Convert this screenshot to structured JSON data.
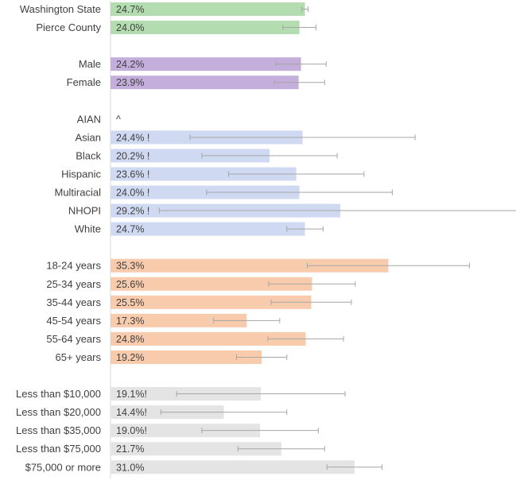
{
  "chart_data": {
    "type": "bar",
    "orientation": "horizontal",
    "colors": {
      "overall": "#b3dcb0",
      "sex": "#c4aedb",
      "race": "#cfd9f2",
      "age": "#f8cbad",
      "income": "#e4e4e4",
      "error_bar": "#a6a6a6"
    },
    "rows": [
      {
        "label": "Washington State",
        "value": 24.7,
        "display": "24.7%",
        "err": [
          24.3,
          25.1
        ],
        "group": "overall"
      },
      {
        "label": "Pierce County",
        "value": 24.0,
        "display": "24.0%",
        "err": [
          21.9,
          26.1
        ],
        "group": "overall"
      },
      {
        "spacer": true
      },
      {
        "label": "Male",
        "value": 24.2,
        "display": "24.2%",
        "err": [
          21.0,
          27.4
        ],
        "group": "sex"
      },
      {
        "label": "Female",
        "value": 23.9,
        "display": "23.9%",
        "err": [
          20.8,
          27.2
        ],
        "group": "sex"
      },
      {
        "spacer": true
      },
      {
        "label": "AIAN",
        "value": null,
        "display": "^",
        "err": null,
        "group": "race"
      },
      {
        "label": "Asian",
        "value": 24.4,
        "display": "24.4% !",
        "err": [
          10.1,
          38.7
        ],
        "group": "race"
      },
      {
        "label": "Black",
        "value": 20.2,
        "display": "20.2% !",
        "err": [
          11.6,
          28.8
        ],
        "group": "race"
      },
      {
        "label": "Hispanic",
        "value": 23.6,
        "display": "23.6% !",
        "err": [
          15.0,
          32.2
        ],
        "group": "race"
      },
      {
        "label": "Multiracial",
        "value": 24.0,
        "display": "24.0% !",
        "err": [
          12.2,
          35.8
        ],
        "group": "race"
      },
      {
        "label": "NHOPI",
        "value": 29.2,
        "display": "29.2% !",
        "err": [
          6.2,
          52.2
        ],
        "group": "race"
      },
      {
        "label": "White",
        "value": 24.7,
        "display": "24.7%",
        "err": [
          22.4,
          27.0
        ],
        "group": "race"
      },
      {
        "spacer": true
      },
      {
        "label": "18-24 years",
        "value": 35.3,
        "display": "35.3%",
        "err": [
          25.0,
          45.6
        ],
        "group": "age"
      },
      {
        "label": "25-34 years",
        "value": 25.6,
        "display": "25.6%",
        "err": [
          20.1,
          31.1
        ],
        "group": "age"
      },
      {
        "label": "35-44 years",
        "value": 25.5,
        "display": "25.5%",
        "err": [
          20.4,
          30.6
        ],
        "group": "age"
      },
      {
        "label": "45-54 years",
        "value": 17.3,
        "display": "17.3%",
        "err": [
          13.1,
          21.5
        ],
        "group": "age"
      },
      {
        "label": "55-64 years",
        "value": 24.8,
        "display": "24.8%",
        "err": [
          20.0,
          29.6
        ],
        "group": "age"
      },
      {
        "label": "65+ years",
        "value": 19.2,
        "display": "19.2%",
        "err": [
          16.0,
          22.4
        ],
        "group": "age"
      },
      {
        "spacer": true
      },
      {
        "label": "Less than $10,000",
        "value": 19.1,
        "display": "19.1%!",
        "err": [
          8.4,
          29.8
        ],
        "group": "income"
      },
      {
        "label": "Less than $20,000",
        "value": 14.4,
        "display": "14.4%!",
        "err": [
          6.4,
          22.4
        ],
        "group": "income"
      },
      {
        "label": "Less than $35,000",
        "value": 19.0,
        "display": "19.0%!",
        "err": [
          11.6,
          26.4
        ],
        "group": "income"
      },
      {
        "label": "Less than $75,000",
        "value": 21.7,
        "display": "21.7%",
        "err": [
          16.2,
          27.2
        ],
        "group": "income"
      },
      {
        "label": "$75,000 or more",
        "value": 31.0,
        "display": "31.0%",
        "err": [
          27.5,
          34.5
        ],
        "group": "income"
      }
    ],
    "xlim": [
      0,
      52
    ],
    "grid": false,
    "legend": "none"
  }
}
